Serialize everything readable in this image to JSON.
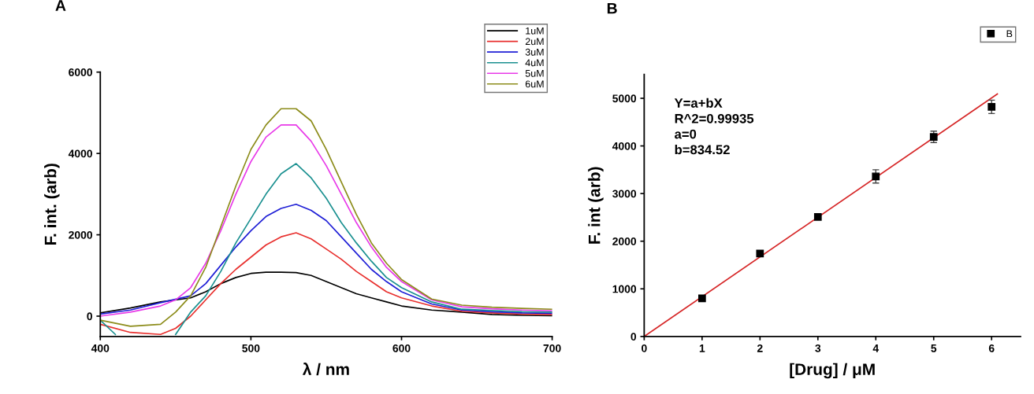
{
  "chart_data": [
    {
      "type": "line",
      "xlabel": "λ / nm",
      "ylabel": "F. int. (arb)",
      "annotations": [
        "A"
      ],
      "xlim": [
        400,
        700
      ],
      "ylim": [
        -500,
        6000
      ],
      "xticks": [
        400,
        500,
        600,
        700
      ],
      "yticks": [
        0,
        2000,
        4000,
        6000
      ],
      "grid": false,
      "legend": "top right",
      "marker": "none",
      "line_style": "solid",
      "series": [
        {
          "name": "1uM",
          "color": "#000000",
          "x": [
            400,
            420,
            440,
            460,
            470,
            480,
            490,
            500,
            510,
            520,
            530,
            540,
            550,
            560,
            570,
            580,
            590,
            600,
            620,
            640,
            660,
            680,
            700
          ],
          "values": [
            80,
            200,
            350,
            450,
            600,
            800,
            950,
            1050,
            1080,
            1080,
            1070,
            1000,
            850,
            700,
            550,
            450,
            350,
            250,
            150,
            100,
            40,
            20,
            10
          ]
        },
        {
          "name": "2uM",
          "color": "#e8302e",
          "x": [
            400,
            420,
            440,
            450,
            460,
            470,
            480,
            490,
            500,
            510,
            520,
            530,
            540,
            550,
            560,
            570,
            580,
            590,
            600,
            620,
            640,
            660,
            680,
            700
          ],
          "values": [
            -200,
            -400,
            -450,
            -300,
            0,
            400,
            800,
            1150,
            1450,
            1750,
            1950,
            2050,
            1900,
            1650,
            1400,
            1100,
            850,
            600,
            450,
            250,
            120,
            80,
            50,
            40
          ]
        },
        {
          "name": "3uM",
          "color": "#1f1fd6",
          "x": [
            400,
            420,
            440,
            460,
            470,
            480,
            490,
            500,
            510,
            520,
            530,
            540,
            550,
            560,
            570,
            580,
            590,
            600,
            620,
            640,
            660,
            680,
            700
          ],
          "values": [
            50,
            150,
            330,
            500,
            800,
            1250,
            1700,
            2100,
            2450,
            2650,
            2750,
            2600,
            2350,
            1950,
            1550,
            1150,
            850,
            600,
            300,
            150,
            110,
            80,
            70
          ]
        },
        {
          "name": "4uM",
          "color": "#1a9090",
          "x": [
            400,
            410,
            430,
            450,
            460,
            470,
            480,
            490,
            500,
            510,
            520,
            530,
            540,
            550,
            560,
            570,
            580,
            590,
            600,
            620,
            640,
            660,
            680,
            700
          ],
          "values": [
            -100,
            -450,
            null,
            -450,
            100,
            500,
            1100,
            1800,
            2400,
            3000,
            3500,
            3750,
            3400,
            2900,
            2300,
            1800,
            1350,
            950,
            700,
            350,
            170,
            140,
            110,
            100
          ]
        },
        {
          "name": "5uM",
          "color": "#e83ae8",
          "x": [
            400,
            420,
            440,
            450,
            460,
            470,
            480,
            490,
            500,
            510,
            520,
            530,
            540,
            550,
            560,
            570,
            580,
            590,
            600,
            620,
            640,
            660,
            680,
            700
          ],
          "values": [
            0,
            100,
            250,
            400,
            700,
            1300,
            2100,
            3000,
            3800,
            4400,
            4700,
            4700,
            4300,
            3700,
            3000,
            2300,
            1700,
            1200,
            850,
            400,
            230,
            180,
            150,
            130
          ]
        },
        {
          "name": "6uM",
          "color": "#8c8c1a",
          "x": [
            400,
            420,
            440,
            450,
            460,
            470,
            480,
            490,
            500,
            510,
            520,
            530,
            540,
            550,
            560,
            570,
            580,
            590,
            600,
            620,
            640,
            660,
            680,
            700
          ],
          "values": [
            -100,
            -250,
            -200,
            100,
            500,
            1200,
            2200,
            3200,
            4100,
            4700,
            5100,
            5100,
            4800,
            4100,
            3300,
            2500,
            1800,
            1300,
            900,
            420,
            270,
            220,
            190,
            170
          ]
        }
      ]
    },
    {
      "type": "scatter",
      "xlabel": "[Drug] / μM",
      "ylabel": "F. int (arb)",
      "annotations": [
        "B",
        "Y=a+bX",
        "R^2=0.99935",
        "a=0",
        "b=834.52"
      ],
      "xlim": [
        0,
        6.5
      ],
      "ylim": [
        0,
        5500
      ],
      "xticks": [
        0,
        1,
        2,
        3,
        4,
        5,
        6
      ],
      "yticks": [
        0,
        1000,
        2000,
        3000,
        4000,
        5000
      ],
      "grid": false,
      "legend": "top right",
      "series": [
        {
          "type": "line",
          "color": "#d62728",
          "x": [
            0,
            6.1
          ],
          "values": [
            0,
            5090
          ],
          "line_style": "solid",
          "marker": "none"
        },
        {
          "type": "scatter",
          "name": "B",
          "color": "#000000",
          "x": [
            1,
            2,
            3,
            4,
            5,
            6
          ],
          "values": [
            800,
            1740,
            2510,
            3360,
            4190,
            4820
          ],
          "errors": [
            30,
            30,
            30,
            140,
            120,
            140
          ],
          "marker": "square"
        }
      ]
    }
  ]
}
